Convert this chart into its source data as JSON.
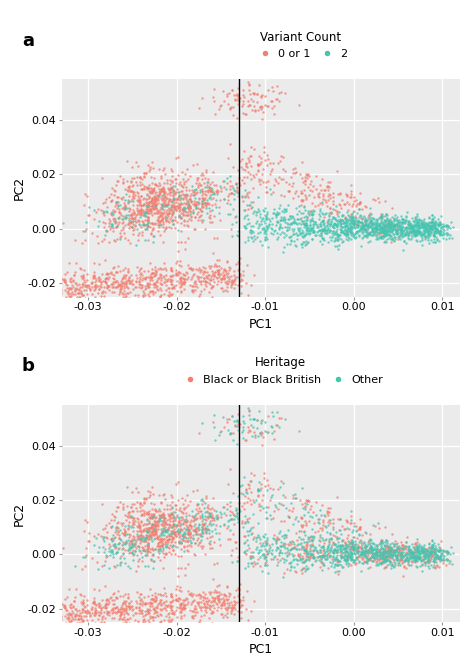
{
  "panel_a_title": "Variant Count",
  "panel_b_title": "Heritage",
  "panel_a_label1": "0 or 1",
  "panel_a_label2": "2",
  "panel_b_label1": "Black or Black British",
  "panel_b_label2": "Other",
  "color_salmon": "#F08070",
  "color_teal": "#45C4B0",
  "vline_x": -0.013,
  "xlim": [
    -0.033,
    0.012
  ],
  "ylim": [
    -0.025,
    0.055
  ],
  "xticks": [
    -0.03,
    -0.02,
    -0.01,
    0.0,
    0.01
  ],
  "yticks": [
    -0.02,
    0.0,
    0.02,
    0.04
  ],
  "xlabel": "PC1",
  "ylabel": "PC2",
  "bg_color": "#EBEBEB",
  "seed": 42,
  "point_size": 3,
  "point_alpha": 0.75,
  "n_total": 3000
}
